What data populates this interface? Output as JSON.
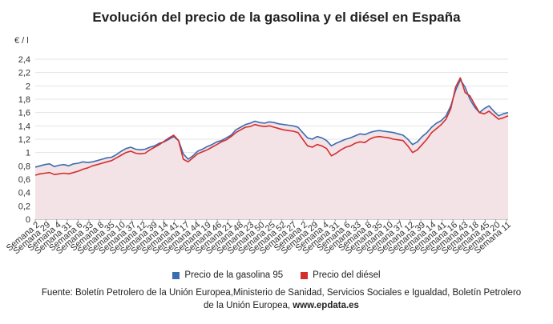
{
  "chart_data": {
    "type": "line",
    "title": "Evolución del precio de la gasolina y el diésel en España",
    "ylabel": "€ / l",
    "ylim": [
      0,
      2.4
    ],
    "yticks": [
      "0",
      "0,2",
      "0,4",
      "0,6",
      "0,8",
      "1",
      "1,2",
      "1,4",
      "1,6",
      "1,8",
      "2",
      "2,2",
      "2,4"
    ],
    "grid": true,
    "fill_under": true,
    "legend_position": "bottom",
    "x_tick_labels": [
      "Semana 2",
      "Semana 29",
      "Semana 4",
      "Semana 31",
      "Semana 6",
      "Semana 33",
      "Semana 8",
      "Semana 35",
      "Semana 10",
      "Semana 37",
      "Semana 12",
      "Semana 39",
      "Semana 14",
      "Semana 41",
      "Semana 17",
      "Semana 44",
      "Semana 19",
      "Semana 46",
      "Semana 21",
      "Semana 48",
      "Semana 23",
      "Semana 50",
      "Semana 25",
      "Semana 52",
      "Semana 27",
      "Semana 2",
      "Semana 29",
      "Semana 4",
      "Semana 31",
      "Semana 6",
      "Semana 33",
      "Semana 8",
      "Semana 35",
      "Semana 10",
      "Semana 37",
      "Semana 12",
      "Semana 39",
      "Semana 14",
      "Semana 41",
      "Semana 16",
      "Semana 43",
      "Semana 18",
      "Semana 45",
      "Semana 20",
      "Semana 11"
    ],
    "series": [
      {
        "name": "Precio de la gasolina 95",
        "color": "#3a6eb0",
        "values": [
          0.78,
          0.8,
          0.82,
          0.83,
          0.79,
          0.81,
          0.82,
          0.8,
          0.83,
          0.84,
          0.86,
          0.85,
          0.86,
          0.88,
          0.9,
          0.92,
          0.93,
          0.97,
          1.02,
          1.06,
          1.08,
          1.05,
          1.04,
          1.05,
          1.08,
          1.1,
          1.14,
          1.16,
          1.2,
          1.24,
          1.18,
          0.98,
          0.9,
          0.95,
          1.02,
          1.05,
          1.09,
          1.12,
          1.16,
          1.18,
          1.22,
          1.26,
          1.34,
          1.38,
          1.42,
          1.44,
          1.47,
          1.45,
          1.44,
          1.46,
          1.45,
          1.43,
          1.42,
          1.41,
          1.4,
          1.38,
          1.3,
          1.22,
          1.2,
          1.24,
          1.22,
          1.18,
          1.1,
          1.14,
          1.17,
          1.2,
          1.22,
          1.25,
          1.28,
          1.27,
          1.3,
          1.32,
          1.33,
          1.32,
          1.31,
          1.3,
          1.28,
          1.26,
          1.2,
          1.12,
          1.16,
          1.24,
          1.3,
          1.38,
          1.44,
          1.48,
          1.55,
          1.7,
          1.93,
          2.09,
          1.98,
          1.8,
          1.68,
          1.6,
          1.66,
          1.7,
          1.62,
          1.55,
          1.58,
          1.6
        ],
        "__comment_values": "approximate weekly values read from chart"
      },
      {
        "name": "Precio del diésel",
        "color": "#d32f2f",
        "values": [
          0.66,
          0.68,
          0.69,
          0.7,
          0.67,
          0.68,
          0.69,
          0.68,
          0.7,
          0.72,
          0.75,
          0.77,
          0.8,
          0.82,
          0.84,
          0.86,
          0.88,
          0.92,
          0.96,
          1.0,
          1.02,
          0.99,
          0.98,
          0.99,
          1.04,
          1.08,
          1.12,
          1.17,
          1.22,
          1.26,
          1.18,
          0.9,
          0.86,
          0.92,
          0.98,
          1.01,
          1.04,
          1.08,
          1.12,
          1.16,
          1.19,
          1.24,
          1.3,
          1.34,
          1.38,
          1.39,
          1.42,
          1.4,
          1.39,
          1.4,
          1.38,
          1.36,
          1.34,
          1.33,
          1.32,
          1.3,
          1.2,
          1.1,
          1.08,
          1.12,
          1.1,
          1.06,
          0.95,
          0.99,
          1.04,
          1.08,
          1.1,
          1.14,
          1.16,
          1.15,
          1.2,
          1.23,
          1.24,
          1.23,
          1.22,
          1.2,
          1.19,
          1.18,
          1.1,
          1.0,
          1.04,
          1.12,
          1.2,
          1.3,
          1.36,
          1.42,
          1.5,
          1.66,
          1.98,
          2.12,
          1.9,
          1.85,
          1.72,
          1.6,
          1.58,
          1.62,
          1.56,
          1.5,
          1.52,
          1.55
        ]
      }
    ]
  },
  "legend": {
    "items": [
      {
        "label": "Precio de la gasolina 95",
        "color": "#3a6eb0"
      },
      {
        "label": "Precio del diésel",
        "color": "#d32f2f"
      }
    ]
  },
  "source": {
    "text": "Fuente: Boletín Petrolero de la Unión Europea,Ministerio de Sanidad, Servicios Sociales e Igualdad, Boletín Petrolero de la Unión Europea,",
    "link": "www.epdata.es"
  }
}
